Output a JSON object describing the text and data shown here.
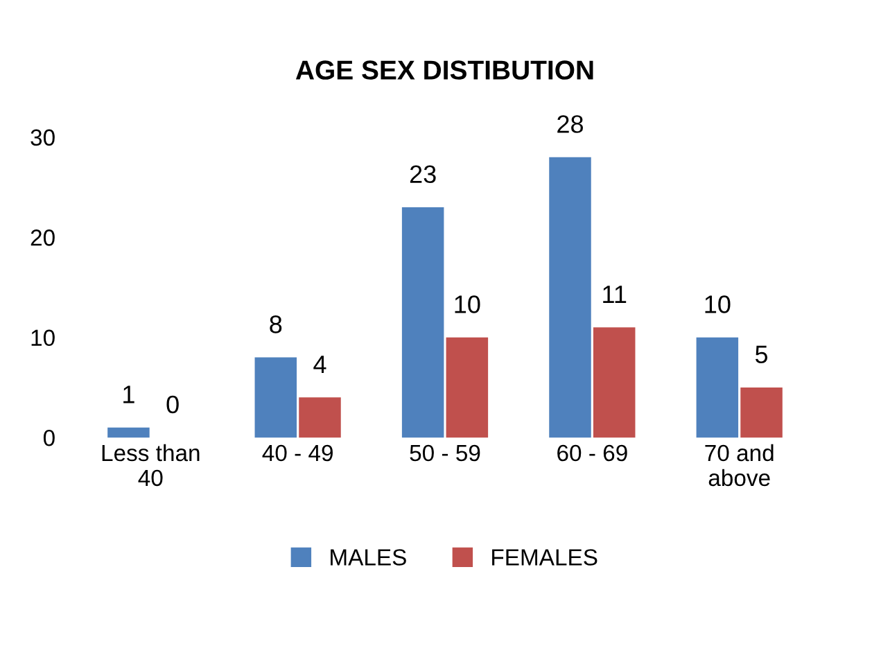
{
  "chart_data": {
    "type": "bar",
    "title": "AGE SEX DISTIBUTION",
    "categories": [
      "Less than\n40",
      "40 - 49",
      "50 - 59",
      "60 - 69",
      "70 and\nabove"
    ],
    "series": [
      {
        "name": "MALES",
        "color": "#4f81bd",
        "values": [
          1,
          8,
          23,
          28,
          10
        ]
      },
      {
        "name": "FEMALES",
        "color": "#c0504d",
        "values": [
          0,
          4,
          10,
          11,
          5
        ]
      }
    ],
    "ylim": [
      0,
      30
    ],
    "yticks": [
      0,
      10,
      20,
      30
    ],
    "grid": false,
    "legend": "bottom",
    "data_labels": true
  }
}
